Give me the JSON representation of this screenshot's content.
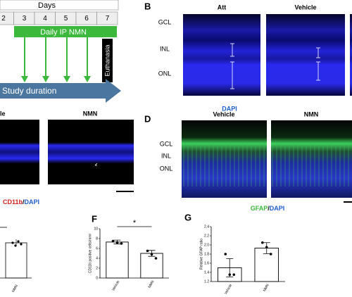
{
  "panelA": {
    "header": "Days",
    "days": [
      "2",
      "3",
      "4",
      "5",
      "6",
      "7"
    ],
    "treatment": "Daily IP NMN",
    "endpoint": "Euthanasia",
    "duration": "Study duration"
  },
  "panelB": {
    "label": "B",
    "columns": [
      "Att",
      "Vehicle"
    ],
    "layers": [
      "GCL",
      "INL",
      "ONL"
    ],
    "stain": "DAPI"
  },
  "panelC": {
    "columns": [
      "le",
      "NMN"
    ],
    "stain": [
      "CD11b",
      "/",
      "DAPI"
    ]
  },
  "panelD": {
    "label": "D",
    "columns": [
      "Vehicle",
      "NMN"
    ],
    "layers": [
      "GCL",
      "INL",
      "ONL"
    ],
    "stain": [
      "GFAP",
      "/",
      "DAPI"
    ]
  },
  "panelE": {
    "categories": [
      "NMN"
    ]
  },
  "chart_data": [
    {
      "type": "bar",
      "label": "F",
      "ylabel": "CD11b positive cells/mm²",
      "categories": [
        "Vehicle",
        "NMN"
      ],
      "values": [
        7.3,
        5.0
      ],
      "errors": [
        0.4,
        0.6
      ],
      "points": [
        [
          7.5,
          7.2,
          7.0
        ],
        [
          5.5,
          4.8,
          4.0
        ]
      ],
      "ylim": [
        0,
        10
      ],
      "yticks": [
        0,
        2,
        4,
        6,
        8,
        10
      ],
      "significance": "*",
      "color": "#ffffff"
    },
    {
      "type": "bar",
      "label": "G",
      "ylabel": "Relative GFAP ratio",
      "categories": [
        "Vehicle",
        "NMN"
      ],
      "values": [
        1.5,
        1.93
      ],
      "errors": [
        0.2,
        0.12
      ],
      "points": [
        [
          1.8,
          1.35,
          1.35
        ],
        [
          2.05,
          1.95,
          1.8
        ]
      ],
      "ylim": [
        1.2,
        2.4
      ],
      "yticks": [
        1.2,
        1.4,
        1.6,
        1.8,
        {
          "value": 2,
          "label": "2.0"
        },
        2.2,
        2.4
      ],
      "color": "#ffffff"
    }
  ]
}
